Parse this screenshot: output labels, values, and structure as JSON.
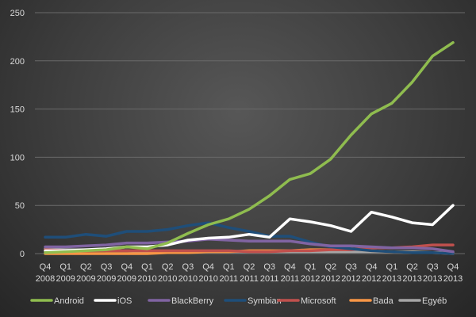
{
  "chart_data": {
    "type": "line",
    "categories": [
      [
        "Q4",
        "2008"
      ],
      [
        "Q1",
        "2009"
      ],
      [
        "Q2",
        "2009"
      ],
      [
        "Q3",
        "2009"
      ],
      [
        "Q4",
        "2009"
      ],
      [
        "Q1",
        "2010"
      ],
      [
        "Q2",
        "2010"
      ],
      [
        "Q3",
        "2010"
      ],
      [
        "Q4",
        "2010"
      ],
      [
        "Q1",
        "2011"
      ],
      [
        "Q2",
        "2011"
      ],
      [
        "Q3",
        "2011"
      ],
      [
        "Q4",
        "2011"
      ],
      [
        "Q1",
        "2012"
      ],
      [
        "Q2",
        "2012"
      ],
      [
        "Q3",
        "2012"
      ],
      [
        "Q4",
        "2012"
      ],
      [
        "Q1",
        "2013"
      ],
      [
        "Q2",
        "2013"
      ],
      [
        "Q3",
        "2013"
      ],
      [
        "Q4",
        "2013"
      ]
    ],
    "ylim": [
      0,
      250
    ],
    "yticks": [
      0,
      50,
      100,
      150,
      200,
      250
    ],
    "grid": true,
    "legend_position": "bottom",
    "series": [
      {
        "name": "Android",
        "color": "#8fbc4f",
        "values": [
          1,
          2,
          3,
          4,
          7,
          5,
          11,
          21,
          30,
          36,
          46,
          60,
          77,
          83,
          98,
          123,
          145,
          156,
          178,
          205,
          219
        ]
      },
      {
        "name": "iOS",
        "color": "#ffffff",
        "values": [
          3,
          3,
          4,
          5,
          7,
          7,
          9,
          14,
          16,
          17,
          20,
          17,
          36,
          33,
          29,
          23,
          43,
          38,
          32,
          30,
          50
        ]
      },
      {
        "name": "BlackBerry",
        "color": "#8064a2",
        "values": [
          7,
          7,
          8,
          9,
          11,
          11,
          12,
          13,
          15,
          14,
          13,
          13,
          13,
          10,
          8,
          8,
          7,
          6,
          6,
          5,
          2
        ]
      },
      {
        "name": "Symbian",
        "color": "#1f4e79",
        "values": [
          17,
          17,
          20,
          18,
          23,
          23,
          25,
          29,
          32,
          27,
          23,
          18,
          18,
          12,
          7,
          5,
          3,
          2,
          1,
          1,
          0
        ]
      },
      {
        "name": "Microsoft",
        "color": "#c0504d",
        "values": [
          4,
          3,
          3,
          3,
          3,
          3,
          3,
          3,
          3,
          3,
          2,
          2,
          3,
          3,
          4,
          4,
          6,
          6,
          7,
          9,
          9
        ]
      },
      {
        "name": "Bada",
        "color": "#f79646",
        "values": [
          0,
          0,
          0,
          0,
          0,
          0,
          1,
          1,
          2,
          2,
          3,
          3,
          3,
          4,
          4,
          5,
          3,
          2,
          1,
          1,
          0
        ]
      },
      {
        "name": "Egyéb",
        "color": "#a6a6a6",
        "values": [
          5,
          4,
          4,
          3,
          3,
          2,
          2,
          2,
          2,
          2,
          2,
          2,
          2,
          2,
          2,
          2,
          2,
          2,
          2,
          1,
          1
        ]
      }
    ]
  }
}
